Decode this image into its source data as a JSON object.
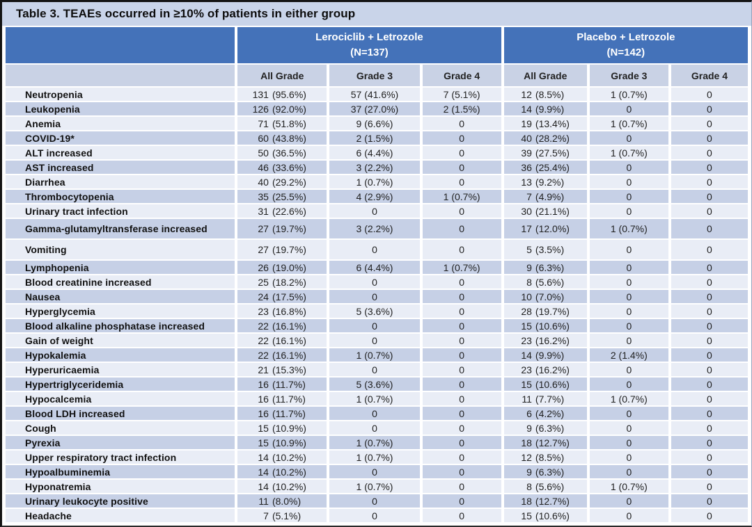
{
  "title": "Table 3. TEAEs occurred in ≥10% of patients in either group",
  "groups": [
    {
      "name": "Lerociclib + Letrozole",
      "n": "(N=137)"
    },
    {
      "name": "Placebo + Letrozole",
      "n": "(N=142)"
    }
  ],
  "subheaders": [
    "All Grade",
    "Grade 3",
    "Grade 4",
    "All Grade",
    "Grade 3",
    "Grade 4"
  ],
  "rows": [
    {
      "label": "Neutropenia",
      "cells": [
        "131 (95.6%)",
        "57 (41.6%)",
        "7 (5.1%)",
        "12 (8.5%)",
        "1 (0.7%)",
        "0"
      ]
    },
    {
      "label": "Leukopenia",
      "cells": [
        "126 (92.0%)",
        "37 (27.0%)",
        "2 (1.5%)",
        "14 (9.9%)",
        "0",
        "0"
      ]
    },
    {
      "label": "Anemia",
      "cells": [
        "71 (51.8%)",
        "9 (6.6%)",
        "0",
        "19 (13.4%)",
        "1 (0.7%)",
        "0"
      ]
    },
    {
      "label": "COVID-19*",
      "cells": [
        "60 (43.8%)",
        "2 (1.5%)",
        "0",
        "40 (28.2%)",
        "0",
        "0"
      ]
    },
    {
      "label": "ALT increased",
      "cells": [
        "50 (36.5%)",
        "6 (4.4%)",
        "0",
        "39 (27.5%)",
        "1 (0.7%)",
        "0"
      ]
    },
    {
      "label": "AST increased",
      "cells": [
        "46 (33.6%)",
        "3 (2.2%)",
        "0",
        "36 (25.4%)",
        "0",
        "0"
      ]
    },
    {
      "label": "Diarrhea",
      "cells": [
        "40 (29.2%)",
        "1 (0.7%)",
        "0",
        "13 (9.2%)",
        "0",
        "0"
      ]
    },
    {
      "label": "Thrombocytopenia",
      "cells": [
        "35 (25.5%)",
        "4 (2.9%)",
        "1 (0.7%)",
        "7 (4.9%)",
        "0",
        "0"
      ]
    },
    {
      "label": "Urinary tract infection",
      "cells": [
        "31 (22.6%)",
        "0",
        "0",
        "30 (21.1%)",
        "0",
        "0"
      ]
    },
    {
      "label": "Gamma-glutamyltransferase increased",
      "cells": [
        "27 (19.7%)",
        "3 (2.2%)",
        "0",
        "17 (12.0%)",
        "1 (0.7%)",
        "0"
      ]
    },
    {
      "label": "Vomiting",
      "cells": [
        "27 (19.7%)",
        "0",
        "0",
        "5 (3.5%)",
        "0",
        "0"
      ]
    },
    {
      "label": "Lymphopenia",
      "cells": [
        "26 (19.0%)",
        "6 (4.4%)",
        "1 (0.7%)",
        "9 (6.3%)",
        "0",
        "0"
      ]
    },
    {
      "label": "Blood creatinine increased",
      "cells": [
        "25 (18.2%)",
        "0",
        "0",
        "8 (5.6%)",
        "0",
        "0"
      ]
    },
    {
      "label": "Nausea",
      "cells": [
        "24 (17.5%)",
        "0",
        "0",
        "10 (7.0%)",
        "0",
        "0"
      ]
    },
    {
      "label": "Hyperglycemia",
      "cells": [
        "23 (16.8%)",
        "5 (3.6%)",
        "0",
        "28 (19.7%)",
        "0",
        "0"
      ]
    },
    {
      "label": "Blood alkaline phosphatase increased",
      "cells": [
        "22 (16.1%)",
        "0",
        "0",
        "15 (10.6%)",
        "0",
        "0"
      ]
    },
    {
      "label": "Gain of weight",
      "cells": [
        "22 (16.1%)",
        "0",
        "0",
        "23 (16.2%)",
        "0",
        "0"
      ]
    },
    {
      "label": "Hypokalemia",
      "cells": [
        "22 (16.1%)",
        "1 (0.7%)",
        "0",
        "14 (9.9%)",
        "2 (1.4%)",
        "0"
      ]
    },
    {
      "label": "Hyperuricaemia",
      "cells": [
        "21 (15.3%)",
        "0",
        "0",
        "23 (16.2%)",
        "0",
        "0"
      ]
    },
    {
      "label": "Hypertriglyceridemia",
      "cells": [
        "16 (11.7%)",
        "5 (3.6%)",
        "0",
        "15 (10.6%)",
        "0",
        "0"
      ]
    },
    {
      "label": "Hypocalcemia",
      "cells": [
        "16 (11.7%)",
        "1 (0.7%)",
        "0",
        "11 (7.7%)",
        "1 (0.7%)",
        "0"
      ]
    },
    {
      "label": "Blood LDH increased",
      "cells": [
        "16 (11.7%)",
        "0",
        "0",
        "6 (4.2%)",
        "0",
        "0"
      ]
    },
    {
      "label": "Cough",
      "cells": [
        "15 (10.9%)",
        "0",
        "0",
        "9 (6.3%)",
        "0",
        "0"
      ]
    },
    {
      "label": "Pyrexia",
      "cells": [
        "15 (10.9%)",
        "1 (0.7%)",
        "0",
        "18 (12.7%)",
        "0",
        "0"
      ]
    },
    {
      "label": "Upper respiratory tract infection",
      "cells": [
        "14 (10.2%)",
        "1 (0.7%)",
        "0",
        "12 (8.5%)",
        "0",
        "0"
      ]
    },
    {
      "label": "Hypoalbuminemia",
      "cells": [
        "14 (10.2%)",
        "0",
        "0",
        "9 (6.3%)",
        "0",
        "0"
      ]
    },
    {
      "label": "Hyponatremia",
      "cells": [
        "14 (10.2%)",
        "1 (0.7%)",
        "0",
        "8 (5.6%)",
        "1 (0.7%)",
        "0"
      ]
    },
    {
      "label": "Urinary leukocyte positive",
      "cells": [
        "11 (8.0%)",
        "0",
        "0",
        "18 (12.7%)",
        "0",
        "0"
      ]
    },
    {
      "label": "Headache",
      "cells": [
        "7 (5.1%)",
        "0",
        "0",
        "15 (10.6%)",
        "0",
        "0"
      ]
    }
  ],
  "colors": {
    "header_blue": "#4472b9",
    "title_bar": "#c9d4e9",
    "subheader_bg": "#c9d2e5",
    "row_light": "#e9edf6",
    "row_dark": "#c6d0e6",
    "text": "#1f1f1f"
  }
}
